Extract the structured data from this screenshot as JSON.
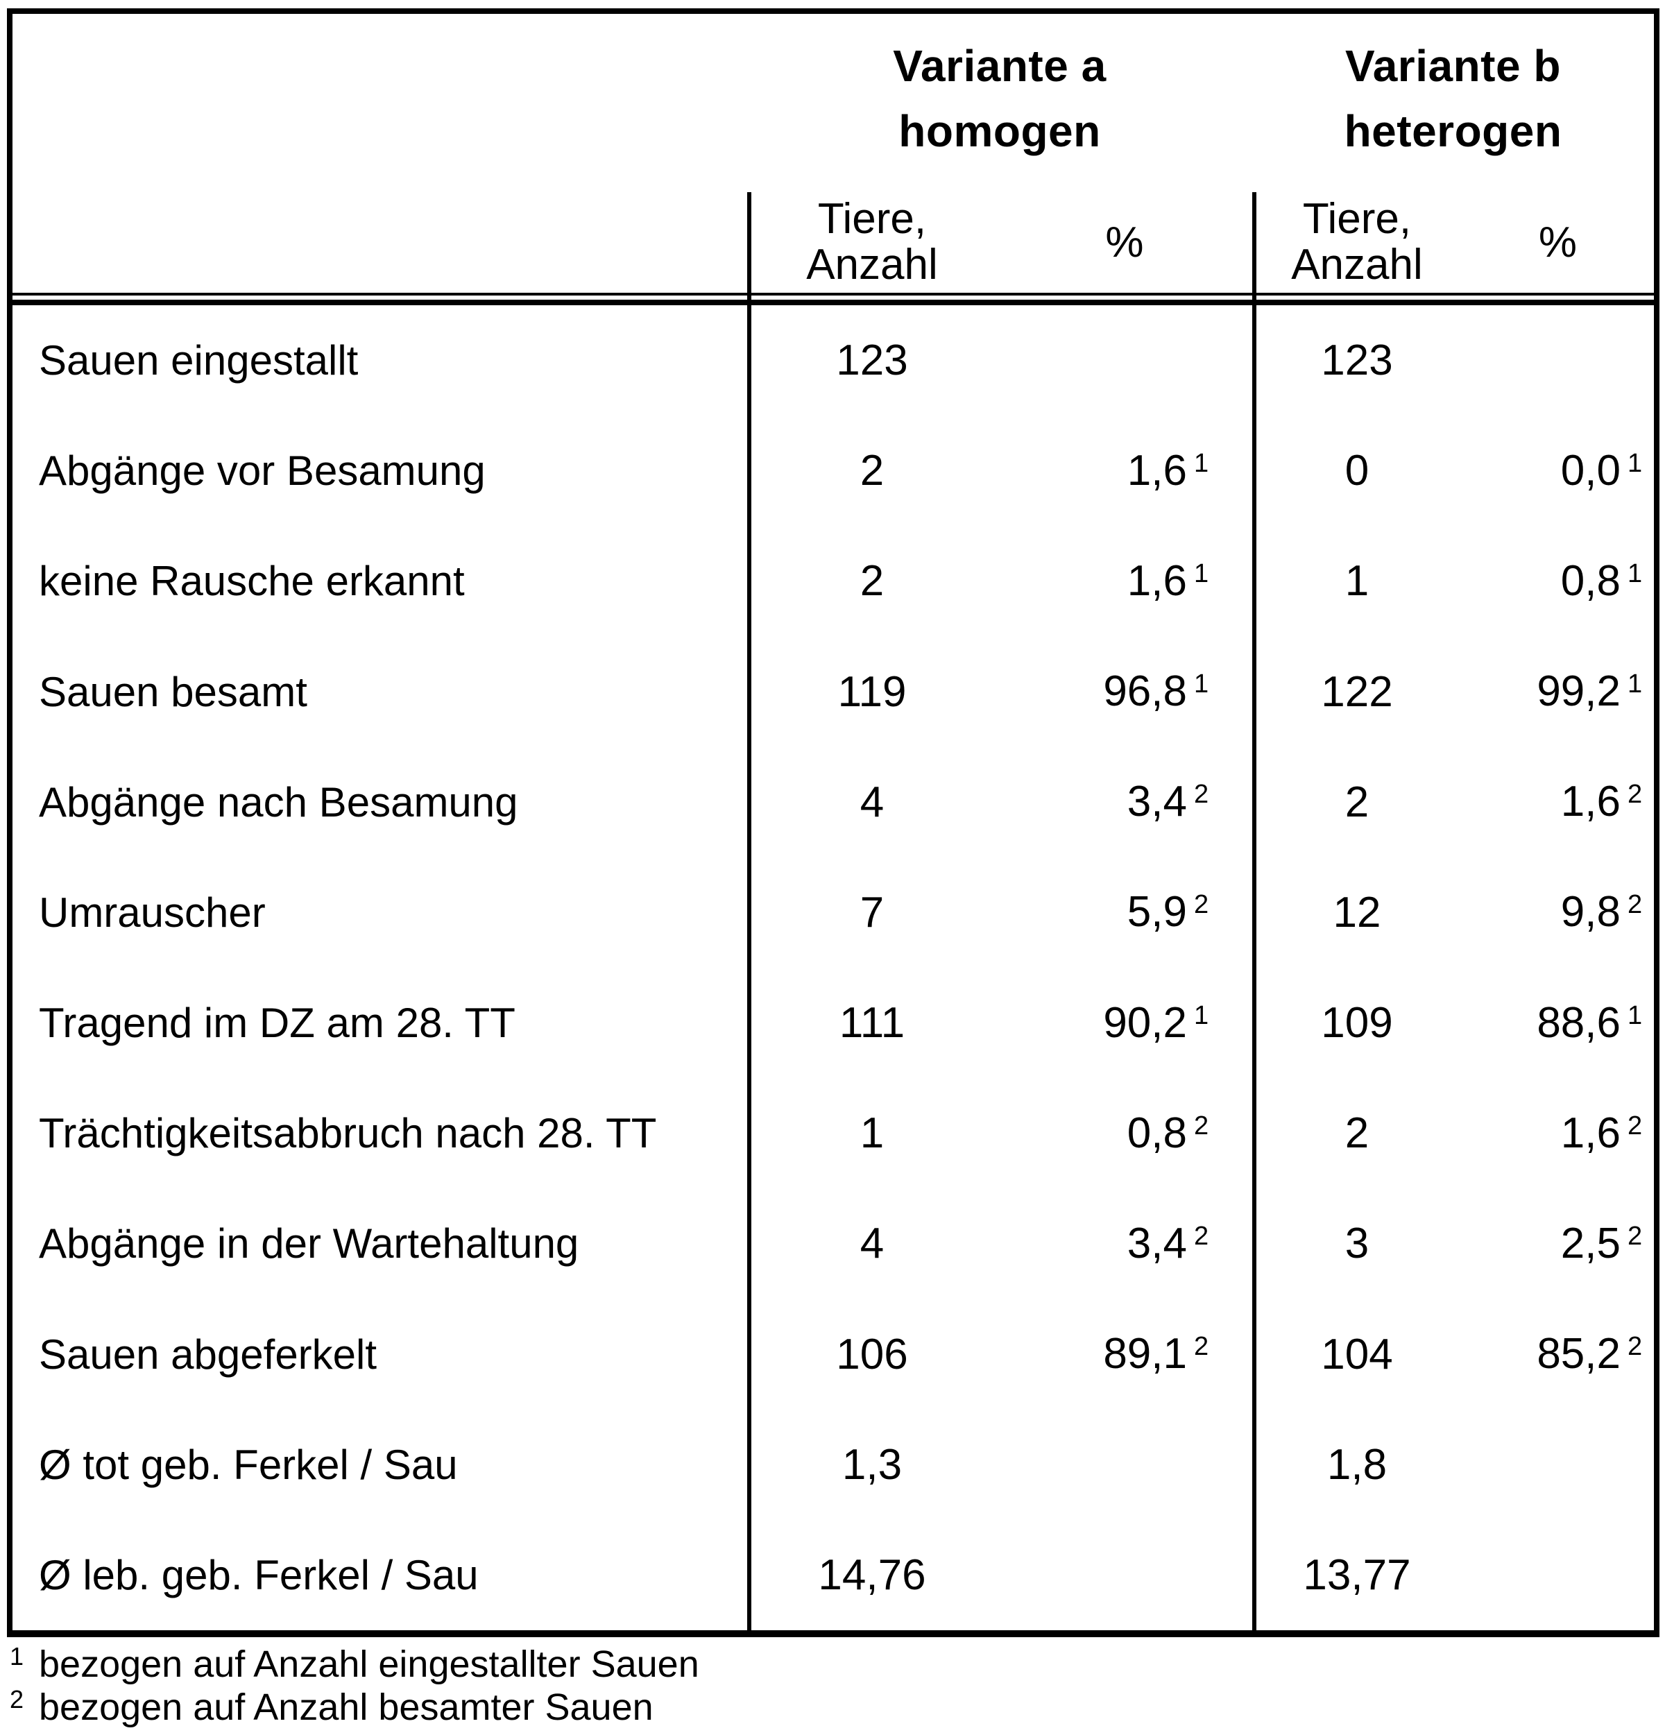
{
  "table": {
    "col_groups": [
      {
        "line1": "Variante a",
        "line2": "homogen"
      },
      {
        "line1": "Variante b",
        "line2": "heterogen"
      }
    ],
    "subheaders": {
      "tiere_line1": "Tiere,",
      "tiere_line2": "Anzahl",
      "percent": "%"
    },
    "rows": [
      {
        "label": "Sauen eingestallt",
        "a_n": "123",
        "a_pct": "",
        "a_sup": "",
        "b_n": "123",
        "b_pct": "",
        "b_sup": ""
      },
      {
        "label": "Abgänge vor Besamung",
        "a_n": "2",
        "a_pct": "1,6",
        "a_sup": "1",
        "b_n": "0",
        "b_pct": "0,0",
        "b_sup": "1"
      },
      {
        "label": "keine Rausche erkannt",
        "a_n": "2",
        "a_pct": "1,6",
        "a_sup": "1",
        "b_n": "1",
        "b_pct": "0,8",
        "b_sup": "1"
      },
      {
        "label": "Sauen besamt",
        "a_n": "119",
        "a_pct": "96,8",
        "a_sup": "1",
        "b_n": "122",
        "b_pct": "99,2",
        "b_sup": "1"
      },
      {
        "label": "Abgänge nach Besamung",
        "a_n": "4",
        "a_pct": "3,4",
        "a_sup": "2",
        "b_n": "2",
        "b_pct": "1,6",
        "b_sup": "2"
      },
      {
        "label": "Umrauscher",
        "a_n": "7",
        "a_pct": "5,9",
        "a_sup": "2",
        "b_n": "12",
        "b_pct": "9,8",
        "b_sup": "2"
      },
      {
        "label": "Tragend im DZ am 28. TT",
        "a_n": "111",
        "a_pct": "90,2",
        "a_sup": "1",
        "b_n": "109",
        "b_pct": "88,6",
        "b_sup": "1"
      },
      {
        "label": "Trächtigkeitsabbruch nach 28. TT",
        "a_n": "1",
        "a_pct": "0,8",
        "a_sup": "2",
        "b_n": "2",
        "b_pct": "1,6",
        "b_sup": "2"
      },
      {
        "label": "Abgänge in der Wartehaltung",
        "a_n": "4",
        "a_pct": "3,4",
        "a_sup": "2",
        "b_n": "3",
        "b_pct": "2,5",
        "b_sup": "2"
      },
      {
        "label": "Sauen abgeferkelt",
        "a_n": "106",
        "a_pct": "89,1",
        "a_sup": "2",
        "b_n": "104",
        "b_pct": "85,2",
        "b_sup": "2"
      },
      {
        "label": "Ø tot geb. Ferkel / Sau",
        "a_n": "1,3",
        "a_pct": "",
        "a_sup": "",
        "b_n": "1,8",
        "b_pct": "",
        "b_sup": ""
      },
      {
        "label": "Ø leb. geb. Ferkel / Sau",
        "a_n": "14,76",
        "a_pct": "",
        "a_sup": "",
        "b_n": "13,77",
        "b_pct": "",
        "b_sup": ""
      }
    ],
    "footnotes": [
      {
        "sup": "1",
        "text": "bezogen auf Anzahl eingestallter Sauen"
      },
      {
        "sup": "2",
        "text": "bezogen auf Anzahl besamter Sauen"
      }
    ]
  }
}
